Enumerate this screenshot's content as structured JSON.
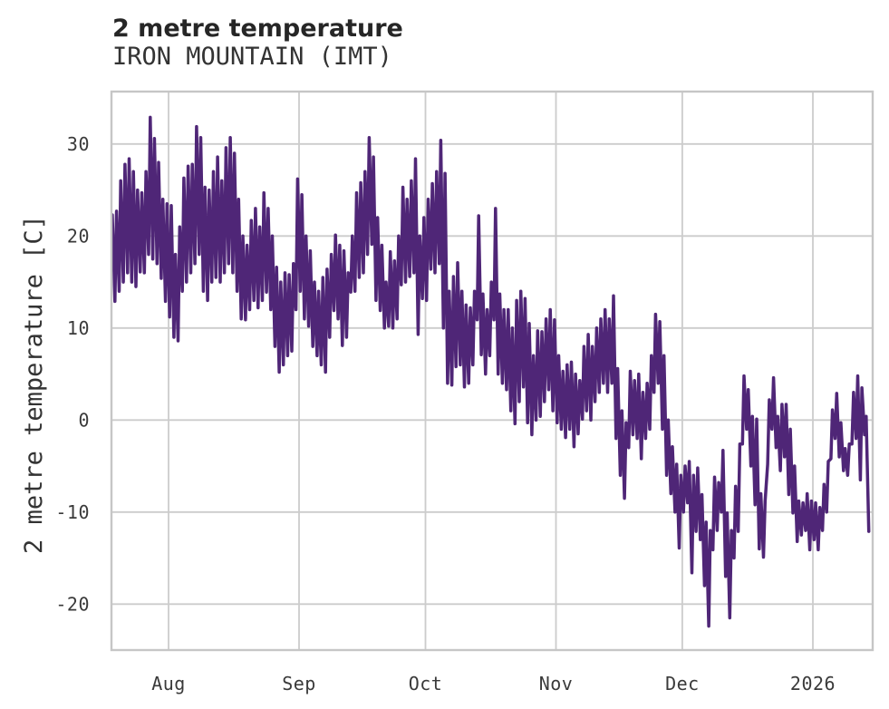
{
  "chart_data": {
    "type": "line",
    "title": "2 metre temperature",
    "subtitle": "IRON MOUNTAIN (IMT)",
    "xlabel": "",
    "ylabel": "2 metre temperature [C]",
    "legend": "none",
    "grid": true,
    "line_color": "#4f2677",
    "background_color": "#ffffff",
    "grid_color": "#cccccc",
    "text_color": "#333333",
    "axes": {
      "x": {
        "unit": "days since 2025-07-18 00:00",
        "min": 0.45,
        "max": 181.2,
        "ticks": [
          {
            "label": "Aug",
            "t": 14
          },
          {
            "label": "Sep",
            "t": 45
          },
          {
            "label": "Oct",
            "t": 75
          },
          {
            "label": "Nov",
            "t": 106
          },
          {
            "label": "Dec",
            "t": 136
          },
          {
            "label": "2026",
            "t": 167
          }
        ]
      },
      "y": {
        "min": -25.0,
        "max": 35.7,
        "ticks": [
          -20,
          -10,
          0,
          10,
          20,
          30
        ]
      }
    },
    "sampling_note": "High-frequency (hourly) temperature trace read off the plot as a daily min/max envelope; line drawn min->max per day.",
    "start_date": "2025-07-18",
    "daily_min": [
      15.9,
      12.9,
      14.0,
      15.0,
      16.0,
      15.0,
      14.5,
      16.1,
      16.0,
      18.0,
      17.5,
      17.0,
      15.4,
      12.9,
      11.2,
      9.0,
      8.6,
      14.0,
      15.0,
      16.0,
      17.0,
      18.0,
      14.0,
      13.0,
      15.0,
      15.5,
      15.0,
      16.0,
      17.0,
      16.0,
      14.0,
      11.0,
      10.9,
      12.0,
      13.0,
      12.2,
      13.0,
      13.9,
      12.0,
      8.0,
      5.2,
      6.0,
      7.0,
      7.5,
      12.0,
      14.0,
      11.0,
      10.2,
      8.0,
      7.0,
      6.0,
      5.2,
      9.0,
      11.9,
      11.0,
      8.1,
      9.0,
      13.9,
      14.0,
      15.5,
      16.0,
      18.0,
      19.1,
      13.0,
      11.9,
      10.0,
      10.2,
      10.0,
      11.0,
      14.7,
      15.0,
      15.6,
      16.0,
      9.3,
      13.2,
      13.0,
      16.4,
      16.0,
      17.0,
      10.0,
      4.0,
      3.8,
      5.8,
      6.0,
      3.6,
      4.0,
      6.0,
      10.9,
      7.1,
      5.0,
      7.0,
      10.9,
      5.0,
      4.0,
      3.3,
      1.0,
      -0.4,
      2.0,
      3.6,
      -0.3,
      -1.6,
      0.0,
      0.4,
      2.0,
      3.3,
      1.0,
      -0.3,
      -1.0,
      -1.9,
      -1.0,
      -2.9,
      -1.5,
      0.1,
      1.0,
      0.0,
      2.0,
      3.0,
      4.0,
      3.0,
      4.0,
      -2.0,
      -6.0,
      -8.5,
      -3.0,
      -1.6,
      -2.0,
      -4.2,
      -2.0,
      -1.0,
      3.0,
      4.0,
      -1.0,
      -6.0,
      -8.0,
      -10.0,
      -13.9,
      -10.0,
      -9.0,
      -16.6,
      -12.1,
      -13.0,
      -18.0,
      -22.4,
      -14.1,
      -12.0,
      -10.0,
      -17.0,
      -21.5,
      -15.0,
      -12.1,
      -2.6,
      -1.0,
      -5.0,
      -9.2,
      -14.0,
      -14.9,
      -4.8,
      -1.0,
      -3.0,
      -5.5,
      -4.0,
      -8.1,
      -10.1,
      -13.2,
      -12.5,
      -12.0,
      -14.1,
      -13.0,
      -14.1,
      -12.0,
      -10.0,
      -4.2,
      -2.0,
      -4.0,
      -5.5,
      -6.0,
      -2.6,
      -2.0,
      -6.5,
      -1.6,
      -12.1
    ],
    "daily_max": [
      22.3,
      22.7,
      26.0,
      27.8,
      28.4,
      27.0,
      25.0,
      24.7,
      27.0,
      32.9,
      30.6,
      28.0,
      24.0,
      23.5,
      23.3,
      18.0,
      21.0,
      26.3,
      27.6,
      27.8,
      31.9,
      30.7,
      25.3,
      25.0,
      27.0,
      28.6,
      26.0,
      29.6,
      30.7,
      29.0,
      24.0,
      20.0,
      19.0,
      21.7,
      23.0,
      21.0,
      24.7,
      23.0,
      20.0,
      16.6,
      15.0,
      16.0,
      15.8,
      17.0,
      26.2,
      24.5,
      20.0,
      18.4,
      15.0,
      14.0,
      15.5,
      16.4,
      18.0,
      20.1,
      19.0,
      18.4,
      16.0,
      20.0,
      24.7,
      25.8,
      27.0,
      30.7,
      28.6,
      22.0,
      19.0,
      15.0,
      18.3,
      17.3,
      20.0,
      25.3,
      24.0,
      26.0,
      28.4,
      20.0,
      22.0,
      24.0,
      25.7,
      27.0,
      30.4,
      26.8,
      14.0,
      15.6,
      17.1,
      14.0,
      12.5,
      12.2,
      14.0,
      22.2,
      13.7,
      12.0,
      15.0,
      23.0,
      13.7,
      12.0,
      12.0,
      10.0,
      13.0,
      14.0,
      13.2,
      10.5,
      7.0,
      9.7,
      9.6,
      11.0,
      12.0,
      10.9,
      7.0,
      5.3,
      6.0,
      6.3,
      5.0,
      4.3,
      8.0,
      9.3,
      8.0,
      10.0,
      11.0,
      12.0,
      11.0,
      13.5,
      5.6,
      1.0,
      -0.3,
      5.3,
      4.3,
      5.0,
      3.0,
      4.0,
      7.0,
      11.5,
      10.7,
      7.0,
      0.0,
      -2.9,
      -4.8,
      -6.0,
      -5.0,
      -4.5,
      -6.0,
      -5.2,
      -8.1,
      -11.1,
      -12.0,
      -6.2,
      -6.8,
      -3.3,
      -10.1,
      -12.0,
      -7.2,
      -2.6,
      4.8,
      3.3,
      0.4,
      0.1,
      -8.0,
      -8.8,
      2.2,
      4.6,
      0.4,
      1.7,
      1.7,
      -1.0,
      -5.0,
      -8.8,
      -9.0,
      -8.0,
      -8.8,
      -9.0,
      -9.5,
      -7.0,
      -4.5,
      1.1,
      2.9,
      -0.3,
      -3.1,
      -2.6,
      3.0,
      4.8,
      3.5,
      0.4,
      null
    ]
  }
}
